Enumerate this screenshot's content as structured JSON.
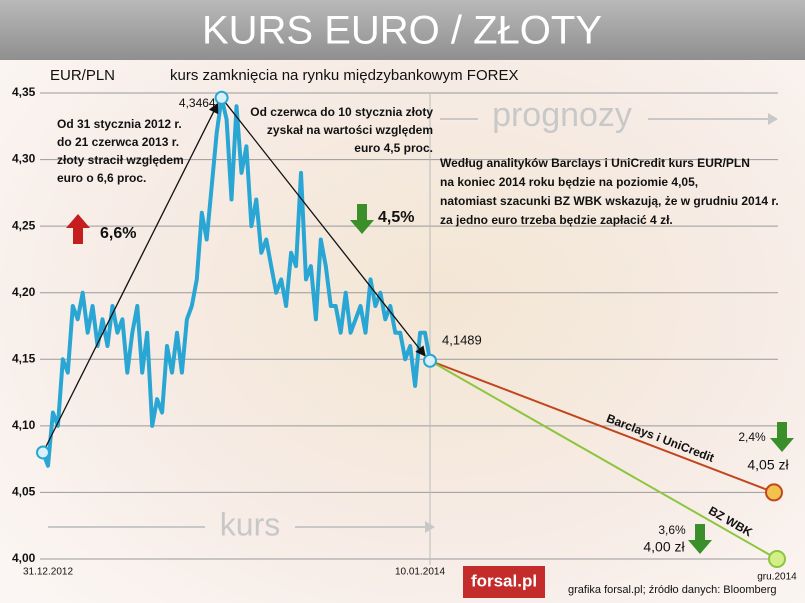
{
  "chart_data": {
    "type": "line",
    "title": "KURS EURO / ZŁOTY",
    "y_label": "EUR/PLN",
    "subtitle": "kurs zamknięcia na rynku międzybankowym FOREX",
    "ylim": [
      4.0,
      4.35
    ],
    "yticks": [
      {
        "value": 4.0,
        "label": "4,00"
      },
      {
        "value": 4.05,
        "label": "4,05"
      },
      {
        "value": 4.1,
        "label": "4,10"
      },
      {
        "value": 4.15,
        "label": "4,15"
      },
      {
        "value": 4.2,
        "label": "4,20"
      },
      {
        "value": 4.25,
        "label": "4,25"
      },
      {
        "value": 4.3,
        "label": "4,30"
      },
      {
        "value": 4.35,
        "label": "4,35"
      }
    ],
    "grid": true,
    "xtick_labels": [
      "31.12.2012",
      "10.01.2014",
      "gru.2014"
    ],
    "series": [
      {
        "name": "kurs",
        "color": "#2aa6d4",
        "values": [
          4.08,
          4.07,
          4.11,
          4.1,
          4.15,
          4.14,
          4.19,
          4.18,
          4.2,
          4.17,
          4.19,
          4.16,
          4.18,
          4.16,
          4.19,
          4.17,
          4.18,
          4.14,
          4.17,
          4.19,
          4.14,
          4.17,
          4.1,
          4.12,
          4.11,
          4.16,
          4.14,
          4.17,
          4.14,
          4.18,
          4.19,
          4.21,
          4.26,
          4.24,
          4.28,
          4.32,
          4.3464,
          4.33,
          4.27,
          4.34,
          4.29,
          4.31,
          4.25,
          4.27,
          4.23,
          4.24,
          4.22,
          4.2,
          4.21,
          4.19,
          4.23,
          4.22,
          4.29,
          4.21,
          4.22,
          4.18,
          4.24,
          4.22,
          4.19,
          4.19,
          4.17,
          4.2,
          4.17,
          4.18,
          4.19,
          4.17,
          4.21,
          4.19,
          4.2,
          4.18,
          4.19,
          4.17,
          4.17,
          4.15,
          4.16,
          4.13,
          4.17,
          4.17,
          4.1489
        ]
      },
      {
        "name": "Barclays i UniCredit",
        "color": "#c1461b",
        "values": [
          4.1489,
          4.05
        ],
        "value_labels": [
          null,
          "4,05 zł"
        ],
        "change": "2,4%"
      },
      {
        "name": "BZ WBK",
        "color": "#8cc63f",
        "values": [
          4.1489,
          4.0
        ],
        "value_labels": [
          null,
          "4,00 zł"
        ],
        "change": "3,6%"
      }
    ],
    "peak_label": "4,3464",
    "end_label": "4,1489",
    "rise_change": "6,6%",
    "fall_change": "4,5%",
    "note_rise": [
      "Od 31 stycznia 2012 r.",
      "do 21 czerwca 2013 r.",
      "złoty stracił względem",
      "euro o 6,6 proc."
    ],
    "note_fall": [
      "Od czerwca do 10 stycznia złoty",
      "zyskał na wartości względem",
      "euro 4,5 proc."
    ],
    "note_forecast": [
      "Według analityków Barclays i UniCredit kurs EUR/PLN",
      "na koniec 2014 roku będzie na poziomie 4,05,",
      "natomiast szacunki BZ WBK wskazują, że w grudniu 2014 r.",
      "za jedno euro trzeba będzie zapłacić 4 zł."
    ],
    "history_label": "kurs",
    "forecast_label": "prognozy",
    "logo": "forsal.pl",
    "source": "grafika forsal.pl;  źródło danych: Bloomberg"
  }
}
